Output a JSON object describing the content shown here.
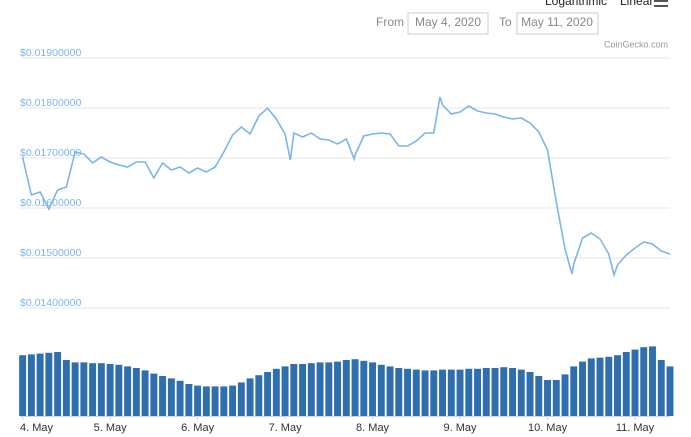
{
  "controls": {
    "scale_options": [
      "Logarithmic",
      "Linear"
    ],
    "from_label": "From",
    "from_value": "May 4, 2020",
    "to_label": "To",
    "to_value": "May 11, 2020"
  },
  "chart_data": [
    {
      "type": "line",
      "credit": "CoinGecko.com",
      "color": "#7cb5ec",
      "grid": true,
      "xlim": [
        3.97,
        11.4
      ],
      "ylim": [
        0.014,
        0.019
      ],
      "yticks": [
        {
          "value": 0.019,
          "label": "$0.01900000"
        },
        {
          "value": 0.018,
          "label": "$0.01800000"
        },
        {
          "value": 0.017,
          "label": "$0.01700000"
        },
        {
          "value": 0.016,
          "label": "$0.01600000"
        },
        {
          "value": 0.015,
          "label": "$0.01500000"
        },
        {
          "value": 0.014,
          "label": "$0.01400000"
        }
      ],
      "x": [
        4.0,
        4.1,
        4.2,
        4.3,
        4.4,
        4.5,
        4.6,
        4.7,
        4.8,
        4.9,
        5.0,
        5.1,
        5.2,
        5.3,
        5.4,
        5.5,
        5.6,
        5.7,
        5.8,
        5.9,
        6.0,
        6.1,
        6.2,
        6.3,
        6.4,
        6.5,
        6.6,
        6.7,
        6.8,
        6.9,
        7.0,
        7.06,
        7.1,
        7.2,
        7.3,
        7.4,
        7.5,
        7.6,
        7.7,
        7.79,
        7.8,
        7.9,
        8.0,
        8.1,
        8.2,
        8.3,
        8.4,
        8.5,
        8.6,
        8.7,
        8.77,
        8.8,
        8.9,
        9.0,
        9.1,
        9.2,
        9.3,
        9.4,
        9.5,
        9.6,
        9.7,
        9.8,
        9.9,
        10.0,
        10.1,
        10.2,
        10.28,
        10.3,
        10.4,
        10.5,
        10.6,
        10.7,
        10.76,
        10.8,
        10.9,
        11.0,
        11.1,
        11.2,
        11.3,
        11.4
      ],
      "values": [
        0.01702,
        0.01626,
        0.01632,
        0.01598,
        0.01636,
        0.01642,
        0.01712,
        0.01708,
        0.0169,
        0.01702,
        0.01692,
        0.01686,
        0.01682,
        0.01692,
        0.01692,
        0.0166,
        0.0169,
        0.01676,
        0.01682,
        0.0167,
        0.0168,
        0.01672,
        0.01682,
        0.01712,
        0.01746,
        0.01762,
        0.01748,
        0.01784,
        0.018,
        0.01778,
        0.01748,
        0.01696,
        0.0175,
        0.01742,
        0.0175,
        0.01738,
        0.01736,
        0.01728,
        0.01738,
        0.01698,
        0.01706,
        0.01744,
        0.01748,
        0.0175,
        0.01748,
        0.01724,
        0.01724,
        0.01734,
        0.0175,
        0.0175,
        0.01822,
        0.01806,
        0.01788,
        0.01792,
        0.01804,
        0.01794,
        0.0179,
        0.01788,
        0.01782,
        0.01778,
        0.0178,
        0.0177,
        0.01752,
        0.01716,
        0.01612,
        0.01518,
        0.01468,
        0.01488,
        0.0154,
        0.0155,
        0.01538,
        0.01508,
        0.01466,
        0.01486,
        0.01506,
        0.0152,
        0.01532,
        0.01528,
        0.01514,
        0.01508
      ]
    },
    {
      "type": "bar",
      "color": "#2f6fae",
      "grid": false,
      "xlim": [
        3.97,
        11.4
      ],
      "ylim": [
        0,
        100
      ],
      "xticks": [
        {
          "value": 4,
          "label": "4. May"
        },
        {
          "value": 5,
          "label": "5. May"
        },
        {
          "value": 6,
          "label": "6. May"
        },
        {
          "value": 7,
          "label": "7. May"
        },
        {
          "value": 8,
          "label": "8. May"
        },
        {
          "value": 9,
          "label": "9. May"
        },
        {
          "value": 10,
          "label": "10. May"
        },
        {
          "value": 11,
          "label": "11. May"
        }
      ],
      "x": [
        4.0,
        4.1,
        4.2,
        4.3,
        4.4,
        4.5,
        4.6,
        4.7,
        4.8,
        4.9,
        5.0,
        5.1,
        5.2,
        5.3,
        5.4,
        5.5,
        5.6,
        5.7,
        5.8,
        5.9,
        6.0,
        6.1,
        6.2,
        6.3,
        6.4,
        6.5,
        6.6,
        6.7,
        6.8,
        6.9,
        7.0,
        7.1,
        7.2,
        7.3,
        7.4,
        7.5,
        7.6,
        7.7,
        7.8,
        7.9,
        8.0,
        8.1,
        8.2,
        8.3,
        8.4,
        8.5,
        8.6,
        8.7,
        8.8,
        8.9,
        9.0,
        9.1,
        9.2,
        9.3,
        9.4,
        9.5,
        9.6,
        9.7,
        9.8,
        9.9,
        10.0,
        10.1,
        10.2,
        10.3,
        10.4,
        10.5,
        10.6,
        10.7,
        10.8,
        10.9,
        11.0,
        11.1,
        11.2,
        11.3,
        11.4
      ],
      "values": [
        76,
        77,
        78,
        79,
        80,
        70,
        67,
        67,
        66,
        66,
        65,
        64,
        62,
        60,
        57,
        53,
        50,
        47,
        44,
        40,
        38,
        37,
        37,
        37,
        38,
        42,
        47,
        51,
        55,
        59,
        62,
        65,
        65,
        66,
        67,
        67,
        68,
        70,
        71,
        69,
        67,
        64,
        62,
        60,
        59,
        58,
        57,
        57,
        58,
        58,
        58,
        59,
        59,
        60,
        60,
        61,
        60,
        58,
        55,
        50,
        45,
        45,
        52,
        62,
        68,
        72,
        73,
        74,
        76,
        80,
        83,
        86,
        87,
        70,
        62
      ]
    }
  ]
}
